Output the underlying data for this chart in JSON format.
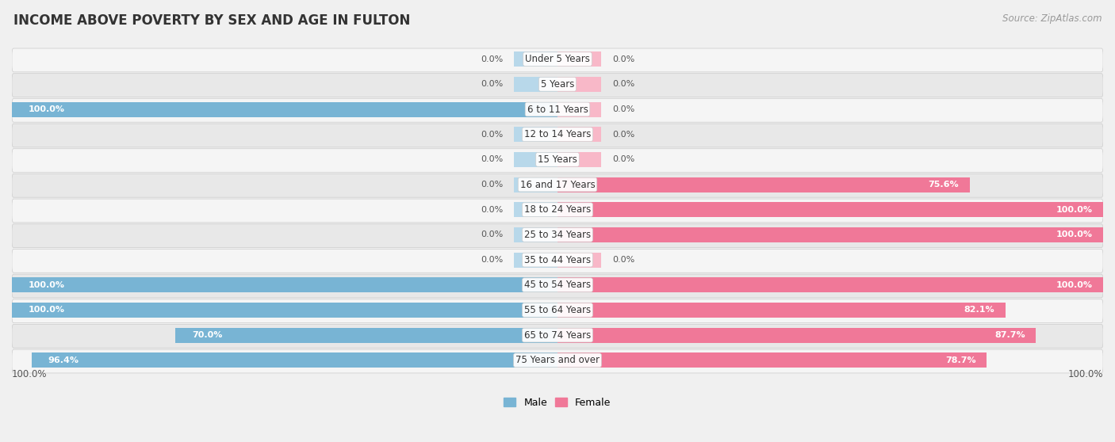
{
  "title": "INCOME ABOVE POVERTY BY SEX AND AGE IN FULTON",
  "source": "Source: ZipAtlas.com",
  "categories": [
    "Under 5 Years",
    "5 Years",
    "6 to 11 Years",
    "12 to 14 Years",
    "15 Years",
    "16 and 17 Years",
    "18 to 24 Years",
    "25 to 34 Years",
    "35 to 44 Years",
    "45 to 54 Years",
    "55 to 64 Years",
    "65 to 74 Years",
    "75 Years and over"
  ],
  "male_values": [
    0.0,
    0.0,
    100.0,
    0.0,
    0.0,
    0.0,
    0.0,
    0.0,
    0.0,
    100.0,
    100.0,
    70.0,
    96.4
  ],
  "female_values": [
    0.0,
    0.0,
    0.0,
    0.0,
    0.0,
    75.6,
    100.0,
    100.0,
    0.0,
    100.0,
    82.1,
    87.7,
    78.7
  ],
  "male_color": "#78b4d4",
  "female_color": "#f07898",
  "male_stub_color": "#b8d8ea",
  "female_stub_color": "#f8b8c8",
  "male_label": "Male",
  "female_label": "Female",
  "row_colors": [
    "#f5f5f5",
    "#e8e8e8"
  ],
  "bar_height": 0.6,
  "stub_value": 8.0,
  "title_fontsize": 12,
  "source_fontsize": 8.5,
  "cat_fontsize": 8.5,
  "val_fontsize": 8.0
}
